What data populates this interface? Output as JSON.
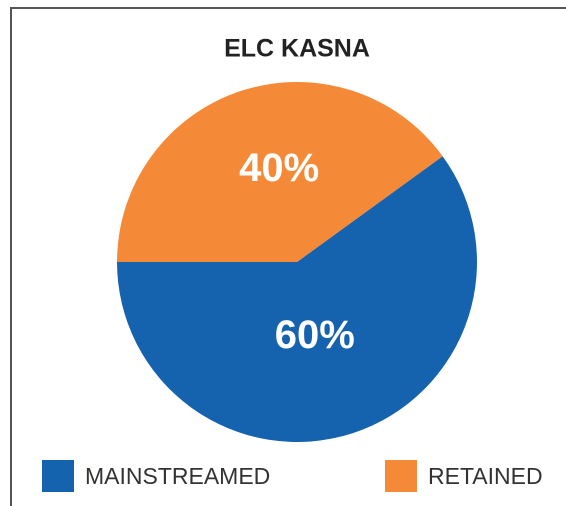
{
  "chart_data": {
    "type": "pie",
    "title": "ELC KASNA",
    "categories": [
      "MAINSTREAMED",
      "RETAINED"
    ],
    "values": [
      60,
      40
    ],
    "value_labels": [
      "60%",
      "40%"
    ],
    "colors": [
      "#1562ae",
      "#f48a37"
    ],
    "legend": "bottom"
  }
}
